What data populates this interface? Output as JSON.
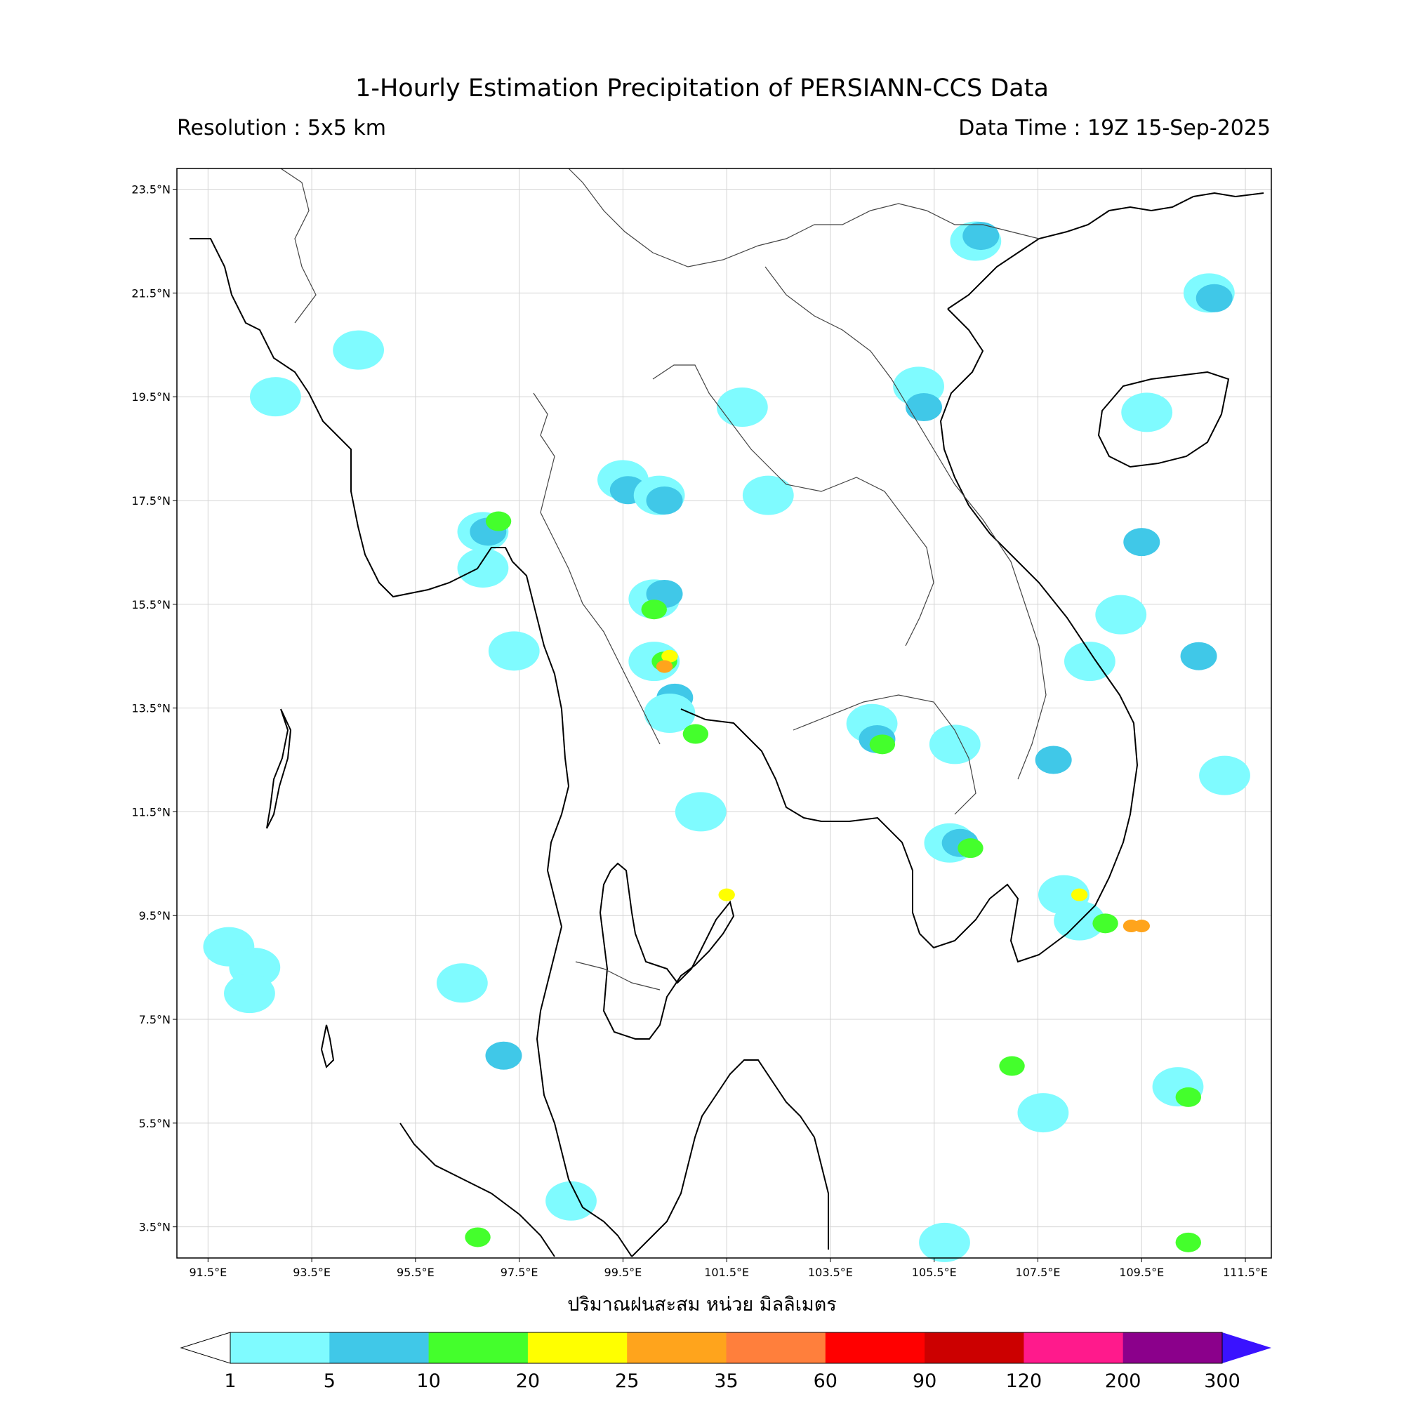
{
  "title": "1-Hourly Estimation Precipitation of PERSIANN-CCS Data",
  "resolution": "Resolution : 5x5 km",
  "data_time": "Data Time : 19Z 15-Sep-2025",
  "xaxis_label": "ปริมาณฝนสะสม หน่วย มิลลิเมตร",
  "map": {
    "lon_range": [
      90.9,
      112.0
    ],
    "lat_range": [
      2.9,
      23.9
    ],
    "lon_ticks": [
      "91.5°E",
      "93.5°E",
      "95.5°E",
      "97.5°E",
      "99.5°E",
      "101.5°E",
      "103.5°E",
      "105.5°E",
      "107.5°E",
      "109.5°E",
      "111.5°E"
    ],
    "lat_ticks": [
      "23.5°N",
      "21.5°N",
      "19.5°N",
      "17.5°N",
      "15.5°N",
      "13.5°N",
      "11.5°N",
      "9.5°N",
      "7.5°N",
      "5.5°N",
      "3.5°N"
    ],
    "rain_cells": [
      {
        "lon": 106.3,
        "lat": 22.5,
        "mm": 3
      },
      {
        "lon": 106.4,
        "lat": 22.6,
        "mm": 7
      },
      {
        "lon": 110.8,
        "lat": 21.5,
        "mm": 3
      },
      {
        "lon": 110.9,
        "lat": 21.4,
        "mm": 7
      },
      {
        "lon": 105.2,
        "lat": 19.7,
        "mm": 3
      },
      {
        "lon": 105.3,
        "lat": 19.3,
        "mm": 7
      },
      {
        "lon": 101.8,
        "lat": 19.3,
        "mm": 3
      },
      {
        "lon": 109.6,
        "lat": 19.2,
        "mm": 3
      },
      {
        "lon": 99.5,
        "lat": 17.9,
        "mm": 3
      },
      {
        "lon": 99.6,
        "lat": 17.7,
        "mm": 7
      },
      {
        "lon": 100.2,
        "lat": 17.6,
        "mm": 3
      },
      {
        "lon": 100.3,
        "lat": 17.5,
        "mm": 7
      },
      {
        "lon": 102.3,
        "lat": 17.6,
        "mm": 3
      },
      {
        "lon": 96.8,
        "lat": 16.9,
        "mm": 3
      },
      {
        "lon": 96.9,
        "lat": 16.9,
        "mm": 7
      },
      {
        "lon": 97.1,
        "lat": 17.1,
        "mm": 12
      },
      {
        "lon": 96.8,
        "lat": 16.2,
        "mm": 3
      },
      {
        "lon": 100.1,
        "lat": 15.6,
        "mm": 3
      },
      {
        "lon": 100.3,
        "lat": 15.7,
        "mm": 7
      },
      {
        "lon": 100.1,
        "lat": 15.4,
        "mm": 12
      },
      {
        "lon": 100.1,
        "lat": 14.4,
        "mm": 3
      },
      {
        "lon": 100.3,
        "lat": 14.4,
        "mm": 12
      },
      {
        "lon": 100.4,
        "lat": 14.5,
        "mm": 22
      },
      {
        "lon": 100.3,
        "lat": 14.3,
        "mm": 30
      },
      {
        "lon": 100.5,
        "lat": 13.7,
        "mm": 7
      },
      {
        "lon": 100.4,
        "lat": 13.4,
        "mm": 3
      },
      {
        "lon": 100.9,
        "lat": 13.0,
        "mm": 12
      },
      {
        "lon": 104.3,
        "lat": 13.2,
        "mm": 3
      },
      {
        "lon": 104.4,
        "lat": 12.9,
        "mm": 7
      },
      {
        "lon": 104.5,
        "lat": 12.8,
        "mm": 12
      },
      {
        "lon": 105.9,
        "lat": 12.8,
        "mm": 3
      },
      {
        "lon": 105.8,
        "lat": 10.9,
        "mm": 3
      },
      {
        "lon": 106.0,
        "lat": 10.9,
        "mm": 7
      },
      {
        "lon": 106.2,
        "lat": 10.8,
        "mm": 12
      },
      {
        "lon": 101.0,
        "lat": 11.5,
        "mm": 3
      },
      {
        "lon": 101.5,
        "lat": 9.9,
        "mm": 22
      },
      {
        "lon": 108.0,
        "lat": 9.9,
        "mm": 3
      },
      {
        "lon": 108.3,
        "lat": 9.9,
        "mm": 22
      },
      {
        "lon": 108.3,
        "lat": 9.4,
        "mm": 3
      },
      {
        "lon": 108.8,
        "lat": 9.35,
        "mm": 12
      },
      {
        "lon": 109.3,
        "lat": 9.3,
        "mm": 25
      },
      {
        "lon": 109.5,
        "lat": 9.3,
        "mm": 30
      },
      {
        "lon": 91.9,
        "lat": 8.9,
        "mm": 3
      },
      {
        "lon": 92.4,
        "lat": 8.5,
        "mm": 3
      },
      {
        "lon": 92.3,
        "lat": 8.0,
        "mm": 3
      },
      {
        "lon": 110.2,
        "lat": 6.2,
        "mm": 3
      },
      {
        "lon": 110.4,
        "lat": 6.0,
        "mm": 12
      },
      {
        "lon": 107.6,
        "lat": 5.7,
        "mm": 3
      },
      {
        "lon": 107.0,
        "lat": 6.6,
        "mm": 12
      },
      {
        "lon": 110.4,
        "lat": 3.2,
        "mm": 12
      },
      {
        "lon": 105.7,
        "lat": 3.2,
        "mm": 3
      },
      {
        "lon": 109.5,
        "lat": 16.7,
        "mm": 7
      },
      {
        "lon": 109.1,
        "lat": 15.3,
        "mm": 3
      },
      {
        "lon": 110.6,
        "lat": 14.5,
        "mm": 7
      },
      {
        "lon": 107.8,
        "lat": 12.5,
        "mm": 7
      },
      {
        "lon": 111.1,
        "lat": 12.2,
        "mm": 3
      },
      {
        "lon": 108.5,
        "lat": 14.4,
        "mm": 3
      },
      {
        "lon": 94.4,
        "lat": 20.4,
        "mm": 3
      },
      {
        "lon": 92.8,
        "lat": 19.5,
        "mm": 3
      },
      {
        "lon": 97.4,
        "lat": 14.6,
        "mm": 3
      },
      {
        "lon": 96.4,
        "lat": 8.2,
        "mm": 3
      },
      {
        "lon": 97.2,
        "lat": 6.8,
        "mm": 7
      },
      {
        "lon": 96.7,
        "lat": 3.3,
        "mm": 12
      },
      {
        "lon": 98.5,
        "lat": 4.0,
        "mm": 3
      }
    ]
  },
  "colorbar": {
    "ticks": [
      "1",
      "5",
      "10",
      "20",
      "25",
      "35",
      "60",
      "90",
      "120",
      "200",
      "300"
    ],
    "colors": [
      "#7ffbff",
      "#40c8e8",
      "#44ff2c",
      "#ffff00",
      "#ffa41c",
      "#ff7f3c",
      "#ff0000",
      "#cc0000",
      "#ff1a8c",
      "#8b008b"
    ],
    "over_color": "#3a12ff",
    "under_color": "#ffffff"
  }
}
